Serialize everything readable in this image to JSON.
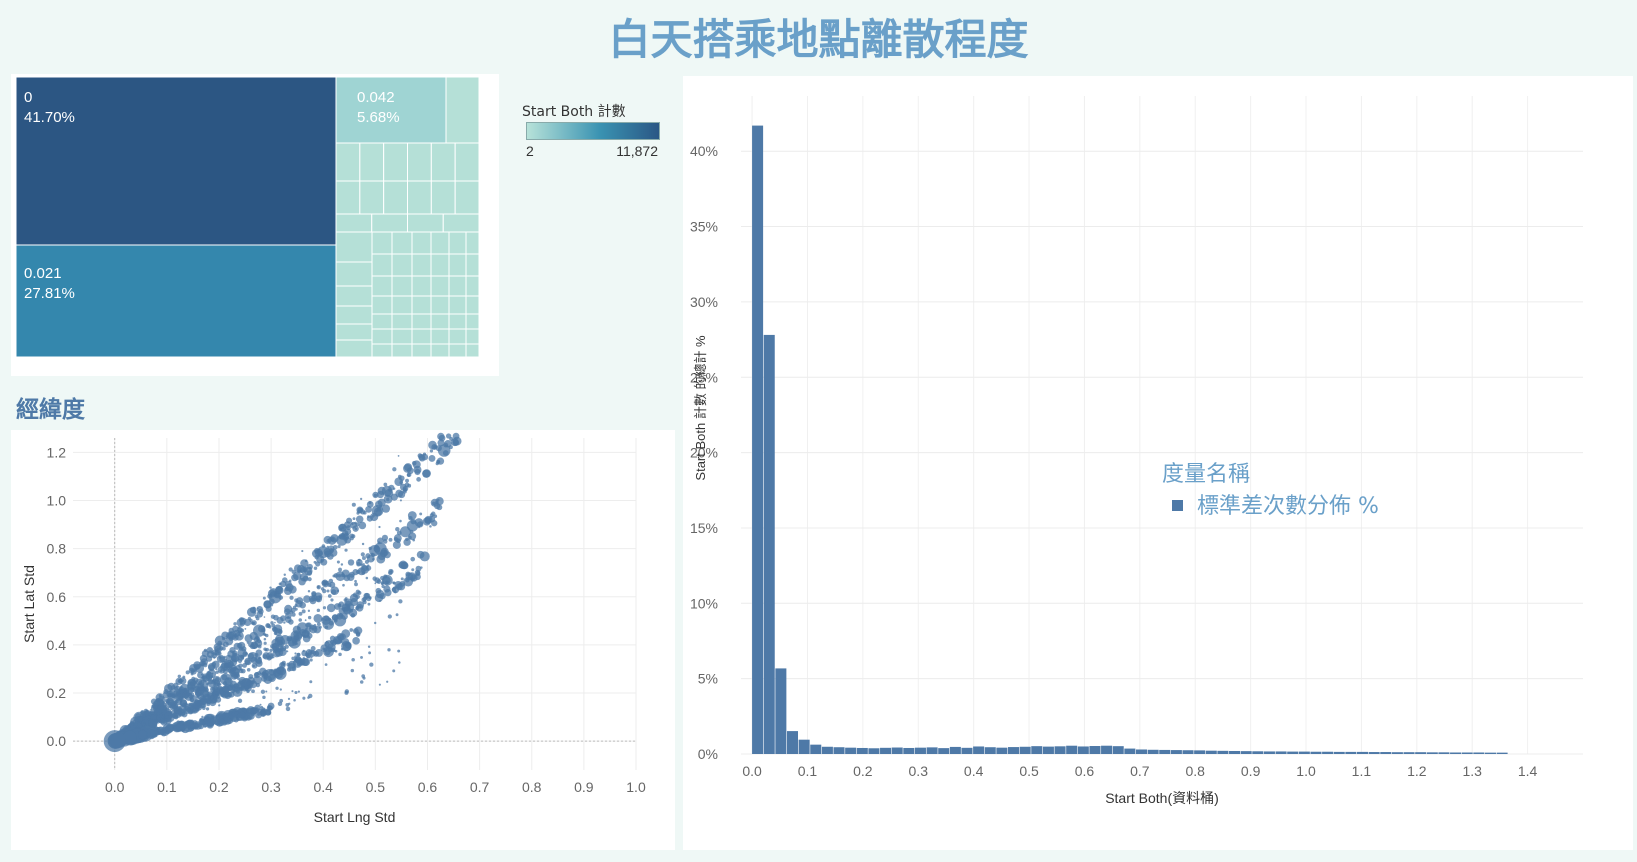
{
  "title": "白天搭乘地點離散程度",
  "treemap": {
    "legend_title": "Start Both 計數",
    "legend_min": "2",
    "legend_max": "11,872",
    "boxes": [
      {
        "value": "0",
        "pct": "41.70%"
      },
      {
        "value": "0.021",
        "pct": "27.81%"
      },
      {
        "value": "0.042",
        "pct": "5.68%"
      }
    ]
  },
  "scatter_title": "經緯度",
  "chart_data": [
    {
      "type": "scatter",
      "title": "經緯度",
      "xlabel": "Start Lng Std",
      "ylabel": "Start Lat Std",
      "xlim": [
        -0.08,
        1.0
      ],
      "ylim": [
        -0.12,
        1.26
      ],
      "x_ticks": [
        "0.0",
        "0.1",
        "0.2",
        "0.3",
        "0.4",
        "0.5",
        "0.6",
        "0.7",
        "0.8",
        "0.9",
        "1.0"
      ],
      "y_ticks": [
        "0.0",
        "0.2",
        "0.4",
        "0.6",
        "0.8",
        "1.0",
        "1.2"
      ],
      "color": "#4e79a7",
      "bands": [
        {
          "slope": 1.95,
          "x_max": 0.66,
          "spread": 0.035
        },
        {
          "slope": 1.55,
          "x_max": 0.63,
          "spread": 0.035
        },
        {
          "slope": 1.25,
          "x_max": 0.6,
          "spread": 0.03
        },
        {
          "slope": 0.95,
          "x_max": 0.47,
          "spread": 0.025
        },
        {
          "slope": 0.45,
          "x_max": 0.3,
          "spread": 0.02
        }
      ]
    },
    {
      "type": "bar",
      "title": "",
      "xlabel": "Start Both(資料桶)",
      "ylabel": "Start Both 計數 的總計 %",
      "ylim": [
        0,
        43
      ],
      "bin_width": 0.021,
      "x_ticks": [
        "0.0",
        "0.1",
        "0.2",
        "0.3",
        "0.4",
        "0.5",
        "0.6",
        "0.7",
        "0.8",
        "0.9",
        "1.0",
        "1.1",
        "1.2",
        "1.3",
        "1.4"
      ],
      "y_ticks": [
        "0%",
        "5%",
        "10%",
        "15%",
        "20%",
        "25%",
        "30%",
        "35%",
        "40%"
      ],
      "series_name": "標準差次數分佈 %",
      "legend_title": "度量名稱",
      "color": "#4e79a7",
      "values": [
        41.7,
        27.81,
        5.68,
        1.52,
        0.95,
        0.62,
        0.48,
        0.45,
        0.42,
        0.4,
        0.38,
        0.41,
        0.43,
        0.4,
        0.42,
        0.44,
        0.39,
        0.47,
        0.41,
        0.5,
        0.45,
        0.42,
        0.46,
        0.48,
        0.52,
        0.49,
        0.51,
        0.55,
        0.5,
        0.53,
        0.55,
        0.52,
        0.36,
        0.3,
        0.28,
        0.27,
        0.26,
        0.25,
        0.24,
        0.22,
        0.21,
        0.2,
        0.19,
        0.18,
        0.17,
        0.17,
        0.16,
        0.16,
        0.15,
        0.15,
        0.14,
        0.14,
        0.14,
        0.13,
        0.13,
        0.12,
        0.12,
        0.12,
        0.11,
        0.11,
        0.1,
        0.1,
        0.1,
        0.09,
        0.09
      ]
    }
  ]
}
